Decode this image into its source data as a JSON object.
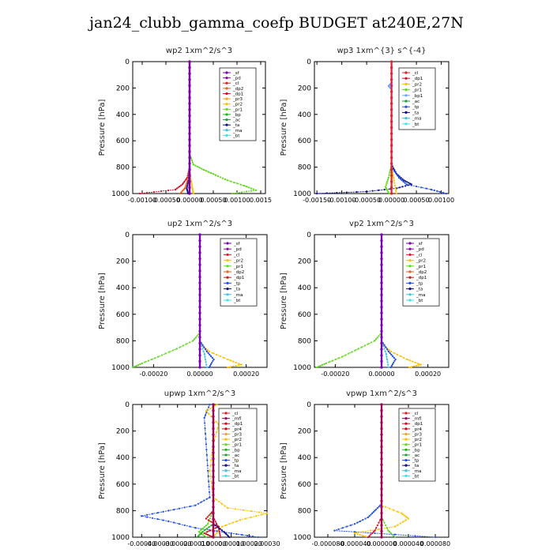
{
  "title": "jan24_clubb_gamma_coefp  BUDGET at240E,27N",
  "colors": {
    "sf": "#7a00b5",
    "pd": "#8a0aa8",
    "cl": "#e0202a",
    "mfl": "#a0005a",
    "dp1": "#d4102a",
    "dp2": "#e8601a",
    "pr1": "#60d820",
    "pr2": "#ffc000",
    "pr3": "#ffa020",
    "pr4": "#c01010",
    "bp": "#20b020",
    "ac": "#18a040",
    "tp": "#2050e0",
    "ta": "#101080",
    "ma": "#40c0e0",
    "bt": "#40e0f0",
    "bp1": "#70a0ff"
  },
  "chart_data": [
    {
      "type": "line",
      "title": "wp2   1xm^2/s^3",
      "ylabel": "Pressure [hPa]",
      "ylim": [
        1000,
        0
      ],
      "xlim": [
        -0.0012,
        0.0016
      ],
      "xticks": [
        -0.001,
        -0.0005,
        0.0,
        0.0005,
        0.001,
        0.0015
      ],
      "xtick_labels": [
        "-0.00100",
        "-0.00050",
        "0.00000",
        "0.00050",
        "0.00100",
        "0.0015"
      ],
      "yticks": [
        0,
        200,
        400,
        600,
        800,
        1000
      ],
      "legend": [
        "_sf",
        "_pd",
        "_cl",
        "_dp2",
        "_dp1",
        "_pr3",
        "_pr2",
        "_pr1",
        "_bp",
        "_ac",
        "_ta",
        "_ma",
        "_bt"
      ],
      "series": [
        {
          "name": "_pr1",
          "color": "pr1",
          "p": [
            0,
            700,
            780,
            820,
            860,
            900,
            940,
            975,
            1000
          ],
          "v": [
            0,
            0,
            8e-05,
            0.0003,
            0.00055,
            0.0008,
            0.00115,
            0.0014,
            0.0009
          ]
        },
        {
          "name": "_dp1",
          "color": "dp1",
          "p": [
            0,
            800,
            880,
            930,
            970,
            1000
          ],
          "v": [
            0,
            0,
            -5e-05,
            -0.00015,
            -0.0003,
            -0.00105
          ]
        },
        {
          "name": "_dp2",
          "color": "dp2",
          "p": [
            0,
            800,
            900,
            960,
            1000
          ],
          "v": [
            0,
            0,
            -4e-05,
            -0.0001,
            -0.0002
          ]
        },
        {
          "name": "_pr2",
          "color": "pr2",
          "p": [
            0,
            820,
            900,
            960,
            1000
          ],
          "v": [
            0,
            0,
            3e-05,
            6e-05,
            8e-05
          ]
        },
        {
          "name": "_ta",
          "color": "ta",
          "p": [
            0,
            800,
            900,
            960,
            1000
          ],
          "v": [
            0,
            0,
            -2e-05,
            -6e-05,
            -3e-05
          ]
        },
        {
          "name": "_cl",
          "color": "cl",
          "p": [
            0,
            1000
          ],
          "v": [
            0,
            0
          ]
        },
        {
          "name": "_pd",
          "color": "pd",
          "p": [
            0,
            1000
          ],
          "v": [
            0,
            0
          ]
        },
        {
          "name": "_sf",
          "color": "sf",
          "p": [
            0,
            1000
          ],
          "v": [
            0,
            0
          ]
        }
      ]
    },
    {
      "type": "line",
      "title": "wp3   1xm^{3} s^{-4}",
      "ylabel": "Pressure [hPa]",
      "ylim": [
        1000,
        0
      ],
      "xlim": [
        -0.00155,
        0.00115
      ],
      "xticks": [
        -0.0015,
        -0.001,
        -0.0005,
        0.0,
        0.0005,
        0.001
      ],
      "xtick_labels": [
        "-0.00150",
        "-0.00100",
        "-0.00050",
        "0.00000",
        "0.00050",
        "0.00100"
      ],
      "yticks": [
        0,
        200,
        400,
        600,
        800,
        1000
      ],
      "legend": [
        "_cl",
        "_dp1",
        "_pr2",
        "_pr1",
        "_bp1",
        "_ac",
        "_tp",
        "_ta",
        "_ma",
        "_bt"
      ],
      "series": [
        {
          "name": "_ta",
          "color": "ta",
          "p": [
            0,
            780,
            850,
            900,
            930,
            960,
            985,
            1000
          ],
          "v": [
            0,
            0,
            0.0001,
            0.00025,
            0.0004,
            0.0001,
            -0.0005,
            -0.0015
          ]
        },
        {
          "name": "_tp",
          "color": "tp",
          "p": [
            0,
            800,
            880,
            930,
            970,
            1000
          ],
          "v": [
            0,
            0,
            0.00015,
            0.0003,
            0.0008,
            0.0011
          ]
        },
        {
          "name": "_pr1",
          "color": "pr1",
          "p": [
            0,
            780,
            880,
            950,
            1000
          ],
          "v": [
            0,
            0,
            -6e-05,
            -0.00012,
            -5e-05
          ]
        },
        {
          "name": "_pr2",
          "color": "pr2",
          "p": [
            0,
            800,
            900,
            1000
          ],
          "v": [
            0,
            0,
            5e-05,
            0.0001
          ]
        },
        {
          "name": "_bp1",
          "color": "bp1",
          "p": [
            0,
            160,
            185,
            210,
            1000
          ],
          "v": [
            0,
            0,
            -6e-05,
            0,
            0
          ]
        },
        {
          "name": "_cl",
          "color": "cl",
          "p": [
            0,
            1000
          ],
          "v": [
            0,
            0
          ]
        }
      ]
    },
    {
      "type": "line",
      "title": "up2   1xm^2/s^3",
      "ylabel": "Pressure [hPa]",
      "ylim": [
        1000,
        0
      ],
      "xlim": [
        -0.00029,
        0.00029
      ],
      "xticks": [
        -0.0002,
        0.0,
        0.0002
      ],
      "xtick_labels": [
        "-0.00020",
        "0.00000",
        "0.00020"
      ],
      "yticks": [
        0,
        200,
        400,
        600,
        800,
        1000
      ],
      "legend": [
        "_sf",
        "_pd",
        "_cl",
        "_pr2",
        "_pr1",
        "_dp2",
        "_dp1",
        "_tp",
        "_ta",
        "_ma",
        "_bt"
      ],
      "series": [
        {
          "name": "_pr1",
          "color": "pr1",
          "p": [
            0,
            740,
            800,
            860,
            920,
            970,
            1000
          ],
          "v": [
            0,
            0,
            -3e-05,
            -0.0001,
            -0.00018,
            -0.00025,
            -0.00029
          ]
        },
        {
          "name": "_pr2",
          "color": "pr2",
          "p": [
            0,
            820,
            880,
            940,
            980,
            1000
          ],
          "v": [
            0,
            0,
            4e-05,
            0.00012,
            0.00018,
            0.00012
          ]
        },
        {
          "name": "_tp",
          "color": "tp",
          "p": [
            0,
            800,
            880,
            940,
            1000
          ],
          "v": [
            0,
            0,
            3e-05,
            6e-05,
            4e-05
          ]
        },
        {
          "name": "_ma",
          "color": "ma",
          "p": [
            0,
            800,
            900,
            1000
          ],
          "v": [
            0,
            0,
            2e-05,
            3e-05
          ]
        },
        {
          "name": "_cl",
          "color": "cl",
          "p": [
            0,
            1000
          ],
          "v": [
            0,
            0
          ]
        },
        {
          "name": "_sf",
          "color": "sf",
          "p": [
            0,
            1000
          ],
          "v": [
            0,
            0
          ]
        }
      ]
    },
    {
      "type": "line",
      "title": "vp2   1xm^2/s^3",
      "ylabel": "Pressure [hPa]",
      "ylim": [
        1000,
        0
      ],
      "xlim": [
        -0.00029,
        0.00029
      ],
      "xticks": [
        -0.0002,
        0.0,
        0.0002
      ],
      "xtick_labels": [
        "-0.00020",
        "0.00000",
        "0.00020"
      ],
      "yticks": [
        0,
        200,
        400,
        600,
        800,
        1000
      ],
      "legend": [
        "_sf",
        "_pd",
        "_cl",
        "_pr2",
        "_pr1",
        "_dp2",
        "_dp1",
        "_tp",
        "_ta",
        "_ma",
        "_bt"
      ],
      "series": [
        {
          "name": "_pr1",
          "color": "pr1",
          "p": [
            0,
            740,
            800,
            860,
            920,
            970,
            1000
          ],
          "v": [
            0,
            0,
            -3e-05,
            -0.0001,
            -0.00017,
            -0.00024,
            -0.00028
          ]
        },
        {
          "name": "_pr2",
          "color": "pr2",
          "p": [
            0,
            820,
            880,
            940,
            980,
            1000
          ],
          "v": [
            0,
            0,
            4e-05,
            0.00011,
            0.00017,
            0.00012
          ]
        },
        {
          "name": "_tp",
          "color": "tp",
          "p": [
            0,
            800,
            880,
            940,
            1000
          ],
          "v": [
            0,
            0,
            3e-05,
            6e-05,
            4e-05
          ]
        },
        {
          "name": "_ma",
          "color": "ma",
          "p": [
            0,
            800,
            900,
            1000
          ],
          "v": [
            0,
            0,
            2e-05,
            3e-05
          ]
        },
        {
          "name": "_cl",
          "color": "cl",
          "p": [
            0,
            1000
          ],
          "v": [
            0,
            0
          ]
        },
        {
          "name": "_sf",
          "color": "sf",
          "p": [
            0,
            1000
          ],
          "v": [
            0,
            0
          ]
        }
      ]
    },
    {
      "type": "line",
      "title": "upwp   1xm^2/s^3",
      "ylabel": "Pressure [hPa]",
      "ylim": [
        1000,
        0
      ],
      "xlim": [
        -0.00045,
        0.0003
      ],
      "xticks": [
        -0.0004,
        -0.0003,
        -0.0002,
        -0.0001,
        0.0,
        0.0001,
        0.0002,
        0.0003
      ],
      "xtick_labels": [
        "-0.00040",
        "-0.00030",
        "-0.00020",
        "-0.00010",
        "0.00000",
        "0.00010",
        "0.00020",
        "0.00030"
      ],
      "yticks": [
        0,
        200,
        400,
        600,
        800,
        1000
      ],
      "legend": [
        "_cl",
        "_mfl",
        "_dp1",
        "_pr4",
        "_pr3",
        "_pr2",
        "_pr1",
        "_bp",
        "_ac",
        "_tp",
        "_ta",
        "_ma",
        "_bt"
      ],
      "series": [
        {
          "name": "_tp",
          "color": "tp",
          "p": [
            0,
            100,
            300,
            500,
            700,
            760,
            800,
            840,
            880,
            930,
            970,
            1000
          ],
          "v": [
            -2e-05,
            -5e-05,
            -4e-05,
            -3e-05,
            -2e-05,
            -0.0001,
            -0.00025,
            -0.0004,
            -0.00025,
            -0.0001,
            0.0001,
            0.00025
          ]
        },
        {
          "name": "_pr2",
          "color": "pr2",
          "p": [
            0,
            50,
            150,
            300,
            500,
            700,
            780,
            820,
            870,
            920,
            1000
          ],
          "v": [
            2e-05,
            -4e-05,
            3e-05,
            0.0,
            -2e-05,
            0.0,
            8e-05,
            0.0003,
            0.00015,
            5e-05,
            0.0
          ]
        },
        {
          "name": "_pr1",
          "color": "pr1",
          "p": [
            0,
            800,
            900,
            960,
            1000
          ],
          "v": [
            0,
            0,
            -3e-05,
            -8e-05,
            -4e-05
          ]
        },
        {
          "name": "_pr4",
          "color": "pr4",
          "p": [
            0,
            800,
            860,
            920,
            970,
            1000
          ],
          "v": [
            0,
            0,
            -4e-05,
            3e-05,
            -5e-05,
            0.0
          ]
        },
        {
          "name": "_dp1",
          "color": "dp1",
          "p": [
            0,
            850,
            930,
            1000
          ],
          "v": [
            0,
            0,
            3e-05,
            4e-05
          ]
        },
        {
          "name": "_ta",
          "color": "ta",
          "p": [
            0,
            900,
            960,
            1000
          ],
          "v": [
            0,
            0,
            6e-05,
            9e-05
          ]
        },
        {
          "name": "_bp",
          "color": "bp",
          "p": [
            0,
            900,
            960,
            1000
          ],
          "v": [
            0,
            0,
            -6e-05,
            -9e-05
          ]
        },
        {
          "name": "_cl",
          "color": "cl",
          "p": [
            0,
            1000
          ],
          "v": [
            0,
            0
          ]
        },
        {
          "name": "_mfl",
          "color": "mfl",
          "p": [
            0,
            1000
          ],
          "v": [
            0,
            0
          ]
        }
      ]
    },
    {
      "type": "line",
      "title": "vpwp   1xm^2/s^3",
      "ylabel": "Pressure [hPa]",
      "ylim": [
        1000,
        0
      ],
      "xlim": [
        -0.0001,
        0.0001
      ],
      "xticks": [
        -8e-05,
        -4e-05,
        0.0,
        4e-05,
        8e-05
      ],
      "xtick_labels": [
        "-0.000080",
        "-0.000040",
        "0.000000",
        "0.000040",
        "0.000080"
      ],
      "yticks": [
        0,
        200,
        400,
        600,
        800,
        1000
      ],
      "legend": [
        "_cl",
        "_mfl",
        "_dp1",
        "_pr4",
        "_pr3",
        "_pr2",
        "_pr1",
        "_bp",
        "_ac",
        "_tp",
        "_ta",
        "_ma",
        "_bt"
      ],
      "series": [
        {
          "name": "_tp",
          "color": "tp",
          "p": [
            0,
            750,
            800,
            850,
            900,
            950,
            1000
          ],
          "v": [
            0,
            0,
            -1e-05,
            -2e-05,
            -4e-05,
            -7e-05,
            8e-05
          ]
        },
        {
          "name": "_pr2",
          "color": "pr2",
          "p": [
            0,
            760,
            820,
            860,
            920,
            970,
            1000
          ],
          "v": [
            0,
            0,
            3e-05,
            4e-05,
            2e-05,
            -4e-05,
            -2e-05
          ]
        },
        {
          "name": "_pr1",
          "color": "pr1",
          "p": [
            0,
            850,
            950,
            1000
          ],
          "v": [
            0,
            0,
            1e-05,
            2e-05
          ]
        },
        {
          "name": "_dp1",
          "color": "dp1",
          "p": [
            0,
            850,
            950,
            1000
          ],
          "v": [
            0,
            0,
            -1e-05,
            -2e-05
          ]
        },
        {
          "name": "_cl",
          "color": "cl",
          "p": [
            0,
            1000
          ],
          "v": [
            0,
            0
          ]
        },
        {
          "name": "_mfl",
          "color": "mfl",
          "p": [
            0,
            1000
          ],
          "v": [
            0,
            0
          ]
        }
      ]
    }
  ]
}
